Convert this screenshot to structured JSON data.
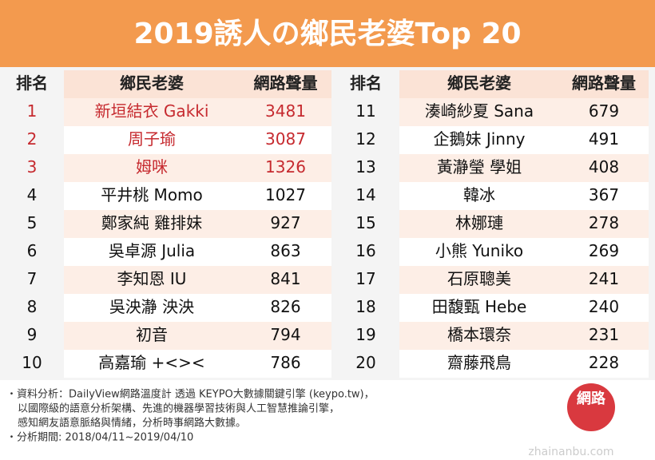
{
  "header": {
    "title": "2019誘人の鄉民老婆Top 20"
  },
  "tables": [
    {
      "columns": [
        "排名",
        "鄉民老婆",
        "網路聲量"
      ],
      "rows": [
        [
          1,
          "新垣結衣 Gakki",
          3481
        ],
        [
          2,
          "周子瑜",
          3087
        ],
        [
          3,
          "姆咪",
          1326
        ],
        [
          4,
          "平井桃 Momo",
          1027
        ],
        [
          5,
          "鄭家純 雞排妹",
          927
        ],
        [
          6,
          "吳卓源 Julia",
          863
        ],
        [
          7,
          "李知恩 IU",
          841
        ],
        [
          8,
          "吳泱瀞 泱泱",
          826
        ],
        [
          9,
          "初音",
          794
        ],
        [
          10,
          "高嘉瑜 +<><",
          786
        ]
      ]
    },
    {
      "columns": [
        "排名",
        "鄉民老婆",
        "網路聲量"
      ],
      "rows": [
        [
          11,
          "湊崎紗夏 Sana",
          679
        ],
        [
          12,
          "企鵝妹 Jinny",
          491
        ],
        [
          13,
          "黃瀞瑩 學姐",
          408
        ],
        [
          14,
          "韓冰",
          367
        ],
        [
          15,
          "林娜璉",
          278
        ],
        [
          16,
          "小熊 Yuniko",
          269
        ],
        [
          17,
          "石原聰美",
          241
        ],
        [
          18,
          "田馥甄 Hebe",
          240
        ],
        [
          19,
          "橋本環奈",
          231
        ],
        [
          20,
          "齋藤飛鳥",
          228
        ]
      ]
    }
  ],
  "footer": {
    "notes": [
      "・資料分析：DailyView網路溫度計 透過 KEYPO大數據關鍵引擎 (keypo.tw)，",
      "以國際級的語意分析架構、先進的機器學習技術與人工智慧推論引擎，",
      "感知網友語意脈絡與情緒，分析時事網路大數據。",
      "・分析期間: 2018/04/11~2019/04/10"
    ],
    "logo": "網路",
    "watermark": "zhainanbu.com"
  }
}
